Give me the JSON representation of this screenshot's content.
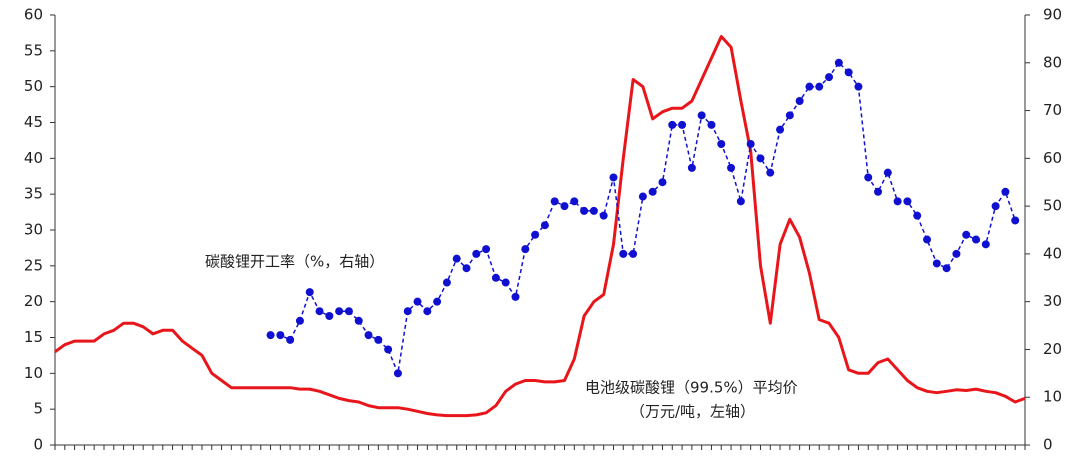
{
  "chart_data": {
    "type": "line",
    "categories": [
      null,
      null,
      null,
      null,
      null,
      null,
      null,
      null,
      null,
      null,
      null,
      null,
      null,
      null,
      null,
      null,
      null,
      null,
      null,
      null,
      null,
      null,
      null,
      null,
      null,
      null,
      null,
      null,
      null,
      null,
      null,
      null,
      null,
      null,
      null,
      null,
      null,
      null,
      null,
      null,
      null,
      null,
      null,
      null,
      null,
      null,
      null,
      null,
      null,
      null,
      null,
      null,
      null,
      null,
      null,
      null,
      null,
      null,
      null,
      null,
      null,
      null,
      null,
      null,
      null,
      null,
      null,
      null,
      null,
      null,
      null,
      null,
      null,
      null,
      null,
      null,
      null,
      null,
      null,
      null,
      null,
      null,
      null,
      null,
      null,
      null,
      null,
      null,
      null,
      null,
      null,
      null,
      null,
      null,
      null,
      null,
      null,
      null,
      null,
      null
    ],
    "series": [
      {
        "color": "#e8161b",
        "style": "solid",
        "values": [
          13,
          14,
          14.5,
          14.5,
          14.5,
          15.5,
          16,
          17,
          17,
          16.5,
          15.5,
          16,
          16,
          14.5,
          13.5,
          12.5,
          10,
          9,
          8,
          8,
          8,
          8,
          8,
          8,
          8,
          7.8,
          7.8,
          7.5,
          7,
          6.5,
          6.2,
          6,
          5.5,
          5.2,
          5.2,
          5.2,
          5,
          4.7,
          4.4,
          4.2,
          4.1,
          4.1,
          4.1,
          4.2,
          4.5,
          5.5,
          7.5,
          8.5,
          9,
          9,
          8.8,
          8.8,
          9,
          12,
          18,
          20,
          21,
          28,
          40,
          51,
          50,
          45.5,
          46.5,
          47,
          47,
          48,
          51,
          54,
          57,
          55.5,
          48,
          41,
          25,
          17,
          28,
          31.5,
          29,
          24,
          17.5,
          17,
          15,
          10.5,
          10,
          10,
          11.5,
          12,
          10.5,
          9,
          8,
          7.5,
          7.3,
          7.5,
          7.7,
          7.6,
          7.8,
          7.5,
          7.3,
          6.8,
          6,
          6.5
        ]
      },
      {
        "color": "#1010d0",
        "style": "dashed-markers",
        "axis": "y2",
        "values": [
          null,
          null,
          null,
          null,
          null,
          null,
          null,
          null,
          null,
          null,
          null,
          null,
          null,
          null,
          null,
          null,
          null,
          null,
          null,
          null,
          null,
          null,
          23,
          23,
          22,
          26,
          32,
          28,
          27,
          28,
          28,
          26,
          23,
          22,
          20,
          15,
          28,
          30,
          28,
          30,
          34,
          39,
          37,
          40,
          41,
          35,
          34,
          31,
          41,
          44,
          46,
          51,
          50,
          51,
          49,
          49,
          48,
          56,
          40,
          40,
          52,
          53,
          55,
          67,
          67,
          58,
          69,
          67,
          63,
          58,
          51,
          63,
          60,
          57,
          66,
          69,
          72,
          75,
          75,
          77,
          80,
          78,
          75,
          56,
          53,
          57,
          51,
          51,
          48,
          43,
          38,
          37,
          40,
          44,
          43,
          42,
          50,
          53,
          47,
          null
        ]
      }
    ],
    "ylim": [
      0,
      60
    ],
    "yticks": [
      0,
      5,
      10,
      15,
      20,
      25,
      30,
      35,
      40,
      45,
      50,
      55,
      60
    ],
    "y2lim": [
      0,
      90
    ],
    "y2ticks": [
      0,
      10,
      20,
      30,
      40,
      50,
      60,
      70,
      80,
      90
    ],
    "annotations": [
      "碳酸锂开工率（%，右轴）",
      "电池级碳酸锂（99.5%）平均价",
      "（万元/吨，左轴）"
    ]
  }
}
